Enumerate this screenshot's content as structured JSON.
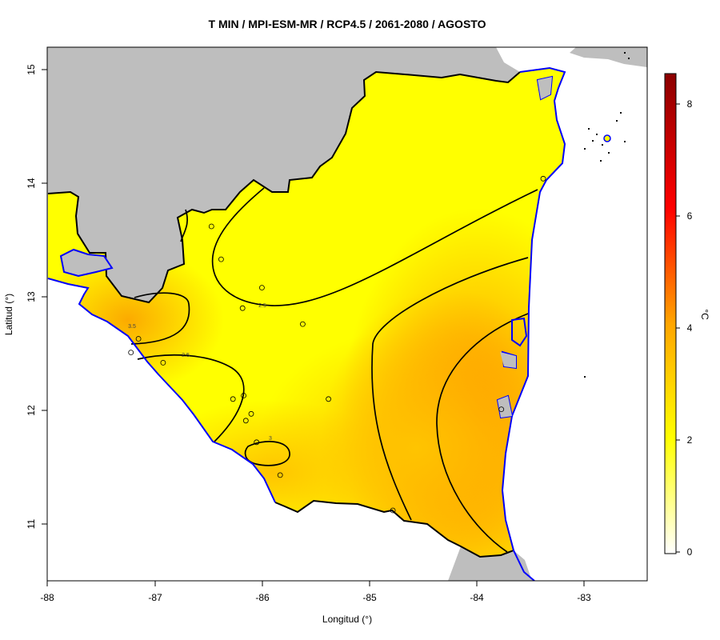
{
  "title": "T MIN / MPI-ESM-MR / RCP4.5 / 2061-2080 / AGOSTO",
  "axes": {
    "xlabel": "Longitud (°)",
    "ylabel": "Latitud (°)",
    "xticks": [
      "-88",
      "-87",
      "-86",
      "-85",
      "-84",
      "-83"
    ],
    "yticks": [
      "11",
      "12",
      "13",
      "14",
      "15"
    ],
    "xlim": [
      -88,
      -82.4
    ],
    "ylim": [
      10.5,
      15.2
    ]
  },
  "colorbar": {
    "unit": "°C",
    "ticks": [
      "0",
      "2",
      "4",
      "6",
      "8"
    ],
    "range": [
      0,
      8.5
    ],
    "colors": [
      "#ffffff",
      "#ffff00",
      "#ffa500",
      "#ff0000",
      "#8b0000"
    ]
  },
  "contour_labels": [
    "2.5",
    "3.5",
    "2.5",
    "3"
  ],
  "colors": {
    "background_land": "#bebebe",
    "sea": "#ffffff",
    "coast": "#0000ff",
    "border": "#000000"
  },
  "chart_data": {
    "type": "heatmap",
    "title": "T MIN / MPI-ESM-MR / RCP4.5 / 2061-2080 / AGOSTO",
    "xlabel": "Longitud (°)",
    "ylabel": "Latitud (°)",
    "xlim": [
      -88,
      -82.4
    ],
    "ylim": [
      10.5,
      15.2
    ],
    "colorbar_range": [
      0,
      8.5
    ],
    "stations": [
      {
        "lon": -86.47,
        "lat": 13.62
      },
      {
        "lon": -86.38,
        "lat": 13.33
      },
      {
        "lon": -86.0,
        "lat": 13.08
      },
      {
        "lon": -86.18,
        "lat": 12.9
      },
      {
        "lon": -85.62,
        "lat": 12.76
      },
      {
        "lon": -87.15,
        "lat": 12.63
      },
      {
        "lon": -87.22,
        "lat": 12.51
      },
      {
        "lon": -86.92,
        "lat": 12.42
      },
      {
        "lon": -86.27,
        "lat": 12.1
      },
      {
        "lon": -86.17,
        "lat": 12.13
      },
      {
        "lon": -86.1,
        "lat": 11.97
      },
      {
        "lon": -86.15,
        "lat": 11.91
      },
      {
        "lon": -86.05,
        "lat": 11.72
      },
      {
        "lon": -85.38,
        "lat": 12.1
      },
      {
        "lon": -85.83,
        "lat": 11.43
      },
      {
        "lon": -84.78,
        "lat": 11.12
      },
      {
        "lon": -83.77,
        "lat": 12.01
      },
      {
        "lon": -83.38,
        "lat": 14.04
      }
    ]
  }
}
